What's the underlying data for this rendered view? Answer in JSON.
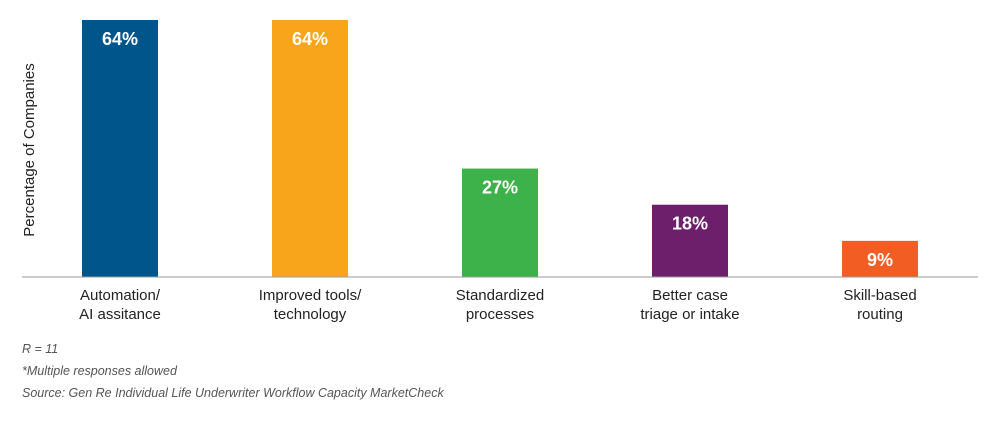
{
  "chart_data": {
    "type": "bar",
    "ylabel": "Percentage of Companies",
    "ylim": [
      0,
      64
    ],
    "grid": false,
    "categories": [
      [
        "Automation/",
        "AI assitance"
      ],
      [
        "Improved tools/",
        "technology"
      ],
      [
        "Standardized",
        "processes"
      ],
      [
        "Better case",
        "triage or intake"
      ],
      [
        "Skill-based",
        "routing"
      ]
    ],
    "values": [
      64,
      64,
      27,
      18,
      9
    ],
    "value_labels": [
      "64%",
      "64%",
      "27%",
      "18%",
      "9%"
    ],
    "colors": [
      "#00558b",
      "#f9a51b",
      "#3db14a",
      "#6d1f6b",
      "#f15d22"
    ]
  },
  "footnotes": {
    "respondents": "R = 11",
    "multiple": "*Multiple responses allowed",
    "source": "Source: Gen Re Individual Life Underwriter Workflow Capacity MarketCheck"
  }
}
